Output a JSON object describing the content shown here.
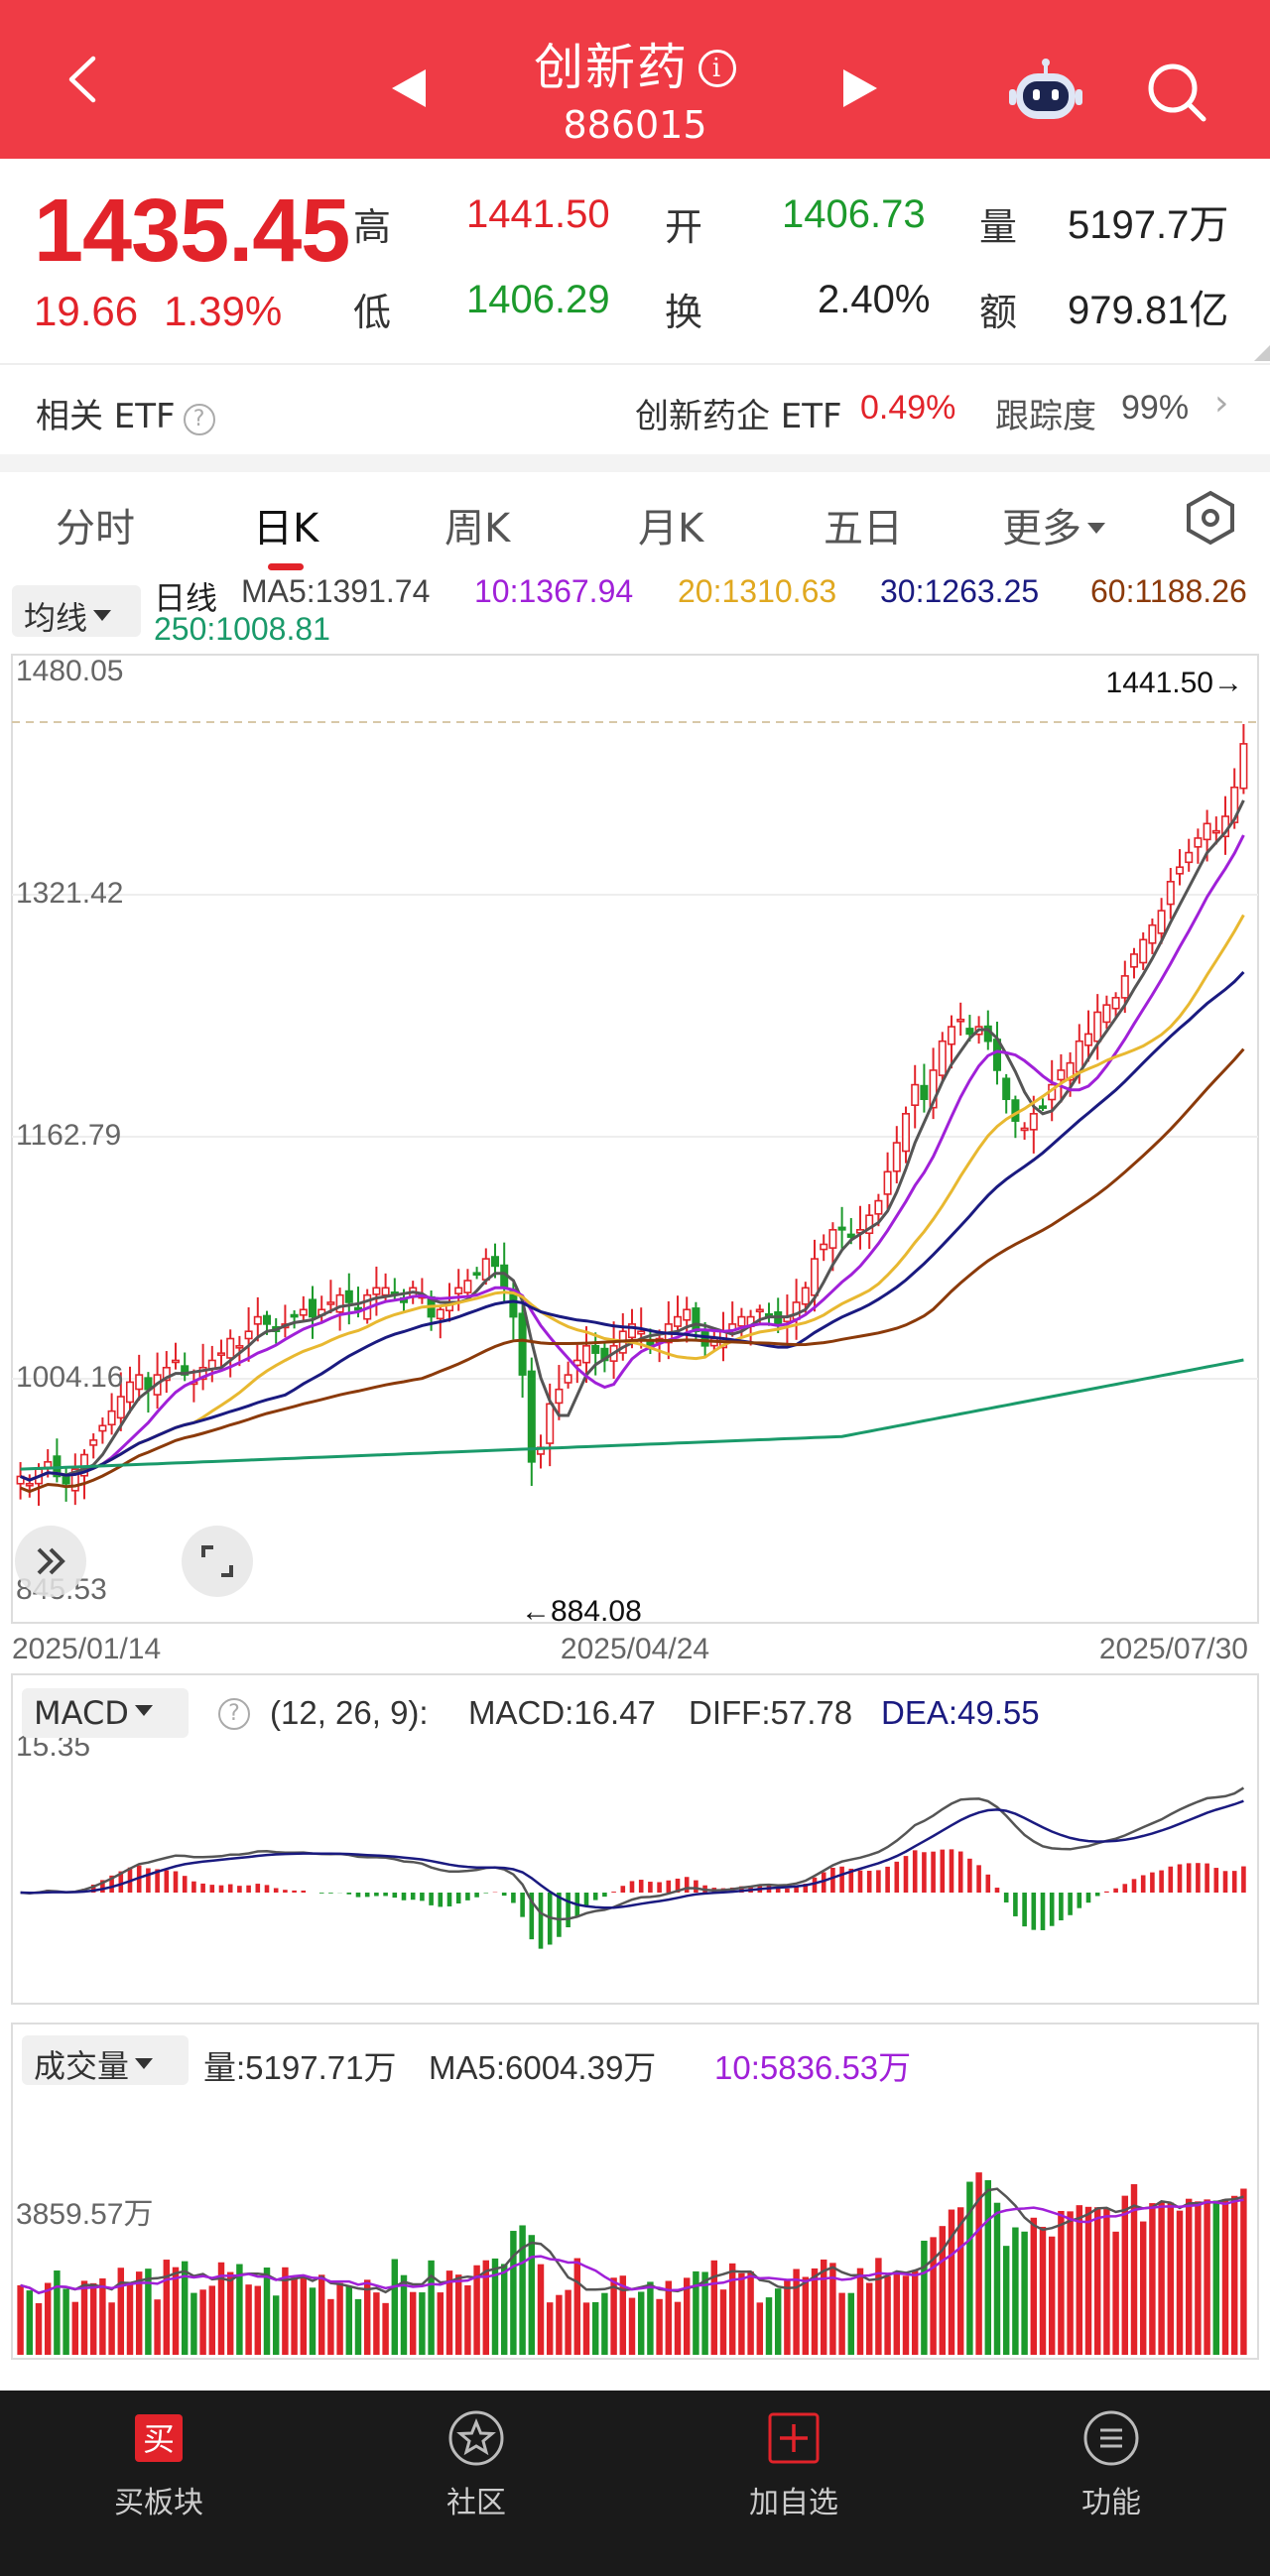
{
  "header": {
    "title": "创新药",
    "info_icon": "info-icon",
    "code": "886015",
    "icons": [
      "back-arrow-icon",
      "prev-triangle-icon",
      "next-triangle-icon",
      "robot-assistant-icon",
      "search-icon"
    ]
  },
  "quote": {
    "price": "1435.45",
    "change": "19.66",
    "change_pct": "1.39%",
    "high_label": "高",
    "high": "1441.50",
    "low_label": "低",
    "low": "1406.29",
    "open_label": "开",
    "open": "1406.73",
    "turnover_label": "换",
    "turnover": "2.40%",
    "volume_label": "量",
    "volume": "5197.7万",
    "amount_label": "额",
    "amount": "979.81亿"
  },
  "etf": {
    "label": "相关 ETF",
    "name": "创新药企 ETF",
    "pct": "0.49%",
    "tracking_label": "跟踪度",
    "tracking": "99%"
  },
  "tabs": [
    {
      "label": "分时"
    },
    {
      "label": "日K"
    },
    {
      "label": "周K"
    },
    {
      "label": "月K"
    },
    {
      "label": "五日"
    },
    {
      "label": "更多"
    }
  ],
  "active_tab": "日K",
  "ma_legend": {
    "select_label": "均线",
    "period": "日线",
    "ma5": "MA5:1391.74",
    "ma10": "10:1367.94",
    "ma20": "20:1310.63",
    "ma30": "30:1263.25",
    "ma60": "60:1188.26",
    "ma250": "250:1008.81"
  },
  "colors": {
    "up": "#e2232a",
    "down": "#1c9a2c",
    "ma5": "#555555",
    "ma10": "#a020d8",
    "ma20": "#e8b830",
    "ma30": "#1a1a80",
    "ma60": "#8b3a0a",
    "ma250": "#1a9a6a"
  },
  "chart_data": [
    {
      "type": "candlestick",
      "y_ticks": [
        "1480.05",
        "1321.42",
        "1162.79",
        "1004.16",
        "845.53"
      ],
      "ylim": [
        845.53,
        1480.05
      ],
      "x_ticks": [
        "2025/01/14",
        "2025/04/24",
        "2025/07/30"
      ],
      "annotations": {
        "max_label": "1441.50→",
        "min_label": "←884.08"
      },
      "ohlc_close_series": [
        930,
        925,
        935,
        940,
        930,
        925,
        935,
        945,
        955,
        965,
        975,
        985,
        995,
        1000,
        990,
        1000,
        1005,
        1010,
        1000,
        995,
        1005,
        1010,
        1015,
        1025,
        1020,
        1030,
        1040,
        1035,
        1030,
        1035,
        1040,
        1045,
        1040,
        1045,
        1050,
        1055,
        1050,
        1045,
        1055,
        1060,
        1060,
        1055,
        1050,
        1060,
        1055,
        1040,
        1045,
        1050,
        1060,
        1065,
        1070,
        1080,
        1075,
        1060,
        1040,
        1000,
        940,
        950,
        980,
        990,
        1000,
        1010,
        1020,
        1015,
        1010,
        1020,
        1030,
        1035,
        1030,
        1020,
        1025,
        1035,
        1040,
        1045,
        1030,
        1020,
        1025,
        1030,
        1035,
        1040,
        1040,
        1045,
        1040,
        1035,
        1040,
        1050,
        1060,
        1080,
        1090,
        1100,
        1100,
        1095,
        1100,
        1110,
        1120,
        1140,
        1160,
        1180,
        1200,
        1190,
        1210,
        1230,
        1240,
        1245,
        1235,
        1240,
        1230,
        1210,
        1190,
        1175,
        1170,
        1180,
        1185,
        1200,
        1210,
        1215,
        1230,
        1235,
        1250,
        1255,
        1260,
        1275,
        1290,
        1300,
        1310,
        1320,
        1340,
        1350,
        1360,
        1370,
        1380,
        1375,
        1385,
        1405,
        1435
      ]
    },
    {
      "type": "macd",
      "select_label": "MACD",
      "params": "(12, 26, 9):",
      "macd": "MACD:16.47",
      "diff": "DIFF:57.78",
      "dea": "DEA:49.55",
      "y_tick": "15.35"
    },
    {
      "type": "bar",
      "select_label": "成交量",
      "volume": "量:5197.71万",
      "ma5": "MA5:6004.39万",
      "ma10": "10:5836.53万",
      "y_tick": "3859.57万"
    }
  ],
  "bottom_nav": [
    {
      "label": "买板块",
      "icon": "buy-icon"
    },
    {
      "label": "社区",
      "icon": "community-star-icon"
    },
    {
      "label": "加自选",
      "icon": "add-watchlist-icon"
    },
    {
      "label": "功能",
      "icon": "menu-icon"
    }
  ]
}
